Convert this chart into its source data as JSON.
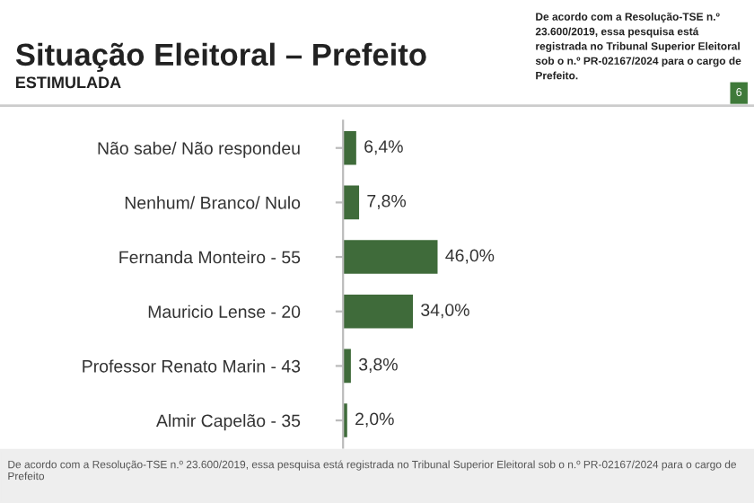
{
  "chart_data": {
    "type": "bar",
    "orientation": "horizontal",
    "title": "Situação Eleitoral – Prefeito",
    "subtitle": "ESTIMULADA",
    "categories": [
      "Não sabe/ Não respondeu",
      "Nenhum/ Branco/ Nulo",
      "Fernanda Monteiro - 55",
      "Mauricio Lense - 20",
      "Professor Renato Marin - 43",
      "Almir Capelão - 35"
    ],
    "values": [
      6.4,
      7.8,
      46.0,
      34.0,
      3.8,
      2.0
    ],
    "value_labels": [
      "6,4%",
      "7,8%",
      "46,0%",
      "34,0%",
      "3,8%",
      "2,0%"
    ],
    "color": "#3f6b3a",
    "xlim": [
      0,
      200
    ],
    "grid": false,
    "legend": false,
    "annotations": [
      "De acordo com a Resolução-TSE n.º 23.600/2019, essa pesquisa está registrada no Tribunal Superior Eleitoral sob o n.º PR-02167/2024 para o cargo de Prefeito.",
      "6",
      "De acordo com a Resolução-TSE n.º 23.600/2019, essa pesquisa está registrada no Tribunal Superior Eleitoral sob o n.º PR-02167/2024 para o cargo de Prefeito"
    ]
  }
}
